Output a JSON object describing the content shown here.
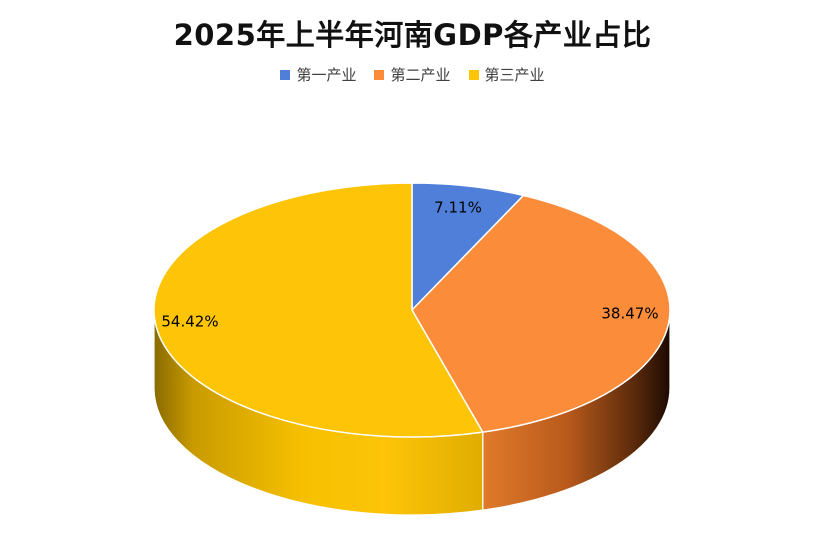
{
  "chart_data": {
    "type": "pie",
    "title": "2025年上半年河南GDP各产业占比",
    "categories": [
      "第一产业",
      "第二产业",
      "第三产业"
    ],
    "values": [
      7.11,
      38.47,
      54.42
    ],
    "labels": [
      "7.11%",
      "38.47%",
      "54.42%"
    ],
    "colors": [
      "#4f7fd9",
      "#fb8c3a",
      "#fdc408"
    ],
    "legend_position": "top"
  }
}
